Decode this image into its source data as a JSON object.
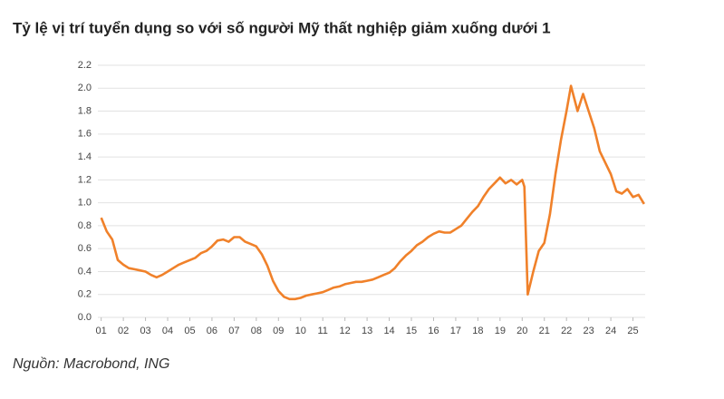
{
  "chart_data": {
    "type": "line",
    "title": "Tỷ lệ vị trí tuyển dụng so với số người Mỹ thất nghiệp giảm xuống dưới 1",
    "source": "Nguồn: Macrobond, ING",
    "color": "#f0812a",
    "grid": true,
    "x": [
      1,
      1.25,
      1.5,
      1.75,
      2,
      2.25,
      2.5,
      2.75,
      3,
      3.25,
      3.5,
      3.75,
      4,
      4.25,
      4.5,
      4.75,
      5,
      5.25,
      5.5,
      5.75,
      6,
      6.25,
      6.5,
      6.75,
      7,
      7.25,
      7.5,
      7.75,
      8,
      8.25,
      8.5,
      8.75,
      9,
      9.25,
      9.5,
      9.75,
      10,
      10.25,
      10.5,
      10.75,
      11,
      11.25,
      11.5,
      11.75,
      12,
      12.25,
      12.5,
      12.75,
      13,
      13.25,
      13.5,
      13.75,
      14,
      14.25,
      14.5,
      14.75,
      15,
      15.25,
      15.5,
      15.75,
      16,
      16.25,
      16.5,
      16.75,
      17,
      17.25,
      17.5,
      17.75,
      18,
      18.25,
      18.5,
      18.75,
      19,
      19.25,
      19.5,
      19.75,
      20,
      20.1,
      20.25,
      20.5,
      20.75,
      21,
      21.25,
      21.5,
      21.75,
      22,
      22.2,
      22.5,
      22.75,
      23,
      23.25,
      23.5,
      23.75,
      24,
      24.25,
      24.5,
      24.75,
      25,
      25.25,
      25.5
    ],
    "values": [
      0.87,
      0.75,
      0.68,
      0.5,
      0.46,
      0.43,
      0.42,
      0.41,
      0.4,
      0.37,
      0.35,
      0.37,
      0.4,
      0.43,
      0.46,
      0.48,
      0.5,
      0.52,
      0.56,
      0.58,
      0.62,
      0.67,
      0.68,
      0.66,
      0.7,
      0.7,
      0.66,
      0.64,
      0.62,
      0.55,
      0.45,
      0.32,
      0.23,
      0.18,
      0.16,
      0.16,
      0.17,
      0.19,
      0.2,
      0.21,
      0.22,
      0.24,
      0.26,
      0.27,
      0.29,
      0.3,
      0.31,
      0.31,
      0.32,
      0.33,
      0.35,
      0.37,
      0.39,
      0.43,
      0.49,
      0.54,
      0.58,
      0.63,
      0.66,
      0.7,
      0.73,
      0.75,
      0.74,
      0.74,
      0.77,
      0.8,
      0.86,
      0.92,
      0.97,
      1.05,
      1.12,
      1.17,
      1.22,
      1.17,
      1.2,
      1.16,
      1.2,
      1.14,
      0.2,
      0.4,
      0.58,
      0.65,
      0.9,
      1.25,
      1.55,
      1.8,
      2.02,
      1.8,
      1.95,
      1.8,
      1.65,
      1.45,
      1.35,
      1.25,
      1.1,
      1.08,
      1.12,
      1.05,
      1.07,
      0.99
    ],
    "xlim": [
      0.85,
      25.55
    ],
    "xticks": [
      {
        "value": 1,
        "label": "01"
      },
      {
        "value": 2,
        "label": "02"
      },
      {
        "value": 3,
        "label": "03"
      },
      {
        "value": 4,
        "label": "04"
      },
      {
        "value": 5,
        "label": "05"
      },
      {
        "value": 6,
        "label": "06"
      },
      {
        "value": 7,
        "label": "07"
      },
      {
        "value": 8,
        "label": "08"
      },
      {
        "value": 9,
        "label": "09"
      },
      10,
      11,
      12,
      13,
      14,
      15,
      16,
      17,
      18,
      19,
      20,
      21,
      22,
      23,
      24,
      25
    ],
    "ylim": [
      0,
      2.2
    ],
    "yticks": [
      {
        "value": 0,
        "label": "0.0"
      },
      0.2,
      0.4,
      0.6,
      0.8,
      {
        "value": 1,
        "label": "1.0"
      },
      1.2,
      1.4,
      1.6,
      1.8,
      {
        "value": 2,
        "label": "2.0"
      },
      2.2
    ]
  }
}
